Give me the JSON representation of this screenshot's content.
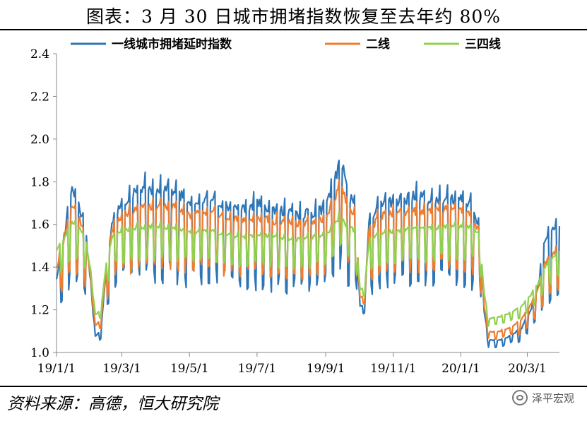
{
  "header": {
    "title": "图表：3 月 30 日城市拥堵指数恢复至去年约 80%"
  },
  "footer": {
    "source": "资料来源：高德，恒大研究院",
    "watermark": "泽平宏观",
    "watermark_icon": "wechat-icon"
  },
  "chart_data": {
    "type": "line",
    "title": "图表：3 月 30 日城市拥堵指数恢复至去年约 80%",
    "xlabel": "",
    "ylabel": "",
    "ylim": [
      1.0,
      2.4
    ],
    "yticks": [
      1.0,
      1.2,
      1.4,
      1.6,
      1.8,
      2.0,
      2.2,
      2.4
    ],
    "x_start": "2019-01-01",
    "x_end": "2020-03-30",
    "xticks": [
      "19/1/1",
      "19/3/1",
      "19/5/1",
      "19/7/1",
      "19/9/1",
      "19/11/1",
      "20/1/1",
      "20/3/1"
    ],
    "grid": false,
    "legend_position": "top",
    "colors": {
      "tier1": "#2E75B6",
      "tier2": "#ED7D31",
      "tier34": "#92D050"
    },
    "series": [
      {
        "name": "一线城市拥堵延时指数",
        "key": "tier1",
        "points": [
          [
            "2019-01-01",
            1.35
          ],
          [
            "2019-01-15",
            1.78
          ],
          [
            "2019-01-22",
            1.7
          ],
          [
            "2019-01-28",
            1.55
          ],
          [
            "2019-02-02",
            1.28
          ],
          [
            "2019-02-05",
            1.08
          ],
          [
            "2019-02-10",
            1.1
          ],
          [
            "2019-02-15",
            1.4
          ],
          [
            "2019-02-20",
            1.62
          ],
          [
            "2019-03-01",
            1.73
          ],
          [
            "2019-03-20",
            1.8
          ],
          [
            "2019-04-01",
            1.79
          ],
          [
            "2019-04-20",
            1.78
          ],
          [
            "2019-05-01",
            1.72
          ],
          [
            "2019-05-20",
            1.76
          ],
          [
            "2019-06-05",
            1.7
          ],
          [
            "2019-06-20",
            1.7
          ],
          [
            "2019-07-01",
            1.72
          ],
          [
            "2019-07-20",
            1.69
          ],
          [
            "2019-08-05",
            1.67
          ],
          [
            "2019-08-20",
            1.68
          ],
          [
            "2019-09-01",
            1.7
          ],
          [
            "2019-09-10",
            1.85
          ],
          [
            "2019-09-15",
            1.95
          ],
          [
            "2019-09-20",
            1.78
          ],
          [
            "2019-09-28",
            1.7
          ],
          [
            "2019-10-02",
            1.22
          ],
          [
            "2019-10-06",
            1.22
          ],
          [
            "2019-10-10",
            1.62
          ],
          [
            "2019-10-20",
            1.72
          ],
          [
            "2019-11-01",
            1.73
          ],
          [
            "2019-11-20",
            1.76
          ],
          [
            "2019-12-05",
            1.74
          ],
          [
            "2019-12-20",
            1.75
          ],
          [
            "2020-01-01",
            1.74
          ],
          [
            "2020-01-10",
            1.72
          ],
          [
            "2020-01-18",
            1.62
          ],
          [
            "2020-01-22",
            1.2
          ],
          [
            "2020-01-26",
            1.06
          ],
          [
            "2020-02-05",
            1.06
          ],
          [
            "2020-02-15",
            1.08
          ],
          [
            "2020-02-25",
            1.12
          ],
          [
            "2020-03-05",
            1.22
          ],
          [
            "2020-03-12",
            1.35
          ],
          [
            "2020-03-16",
            1.55
          ],
          [
            "2020-03-22",
            1.58
          ],
          [
            "2020-03-30",
            1.62
          ]
        ]
      },
      {
        "name": "二线",
        "key": "tier2",
        "points": [
          [
            "2019-01-01",
            1.4
          ],
          [
            "2019-01-15",
            1.7
          ],
          [
            "2019-01-22",
            1.65
          ],
          [
            "2019-01-28",
            1.52
          ],
          [
            "2019-02-02",
            1.3
          ],
          [
            "2019-02-05",
            1.13
          ],
          [
            "2019-02-10",
            1.15
          ],
          [
            "2019-02-15",
            1.4
          ],
          [
            "2019-02-20",
            1.58
          ],
          [
            "2019-03-01",
            1.66
          ],
          [
            "2019-03-20",
            1.7
          ],
          [
            "2019-04-01",
            1.7
          ],
          [
            "2019-04-20",
            1.7
          ],
          [
            "2019-05-01",
            1.66
          ],
          [
            "2019-05-20",
            1.68
          ],
          [
            "2019-06-05",
            1.64
          ],
          [
            "2019-06-20",
            1.64
          ],
          [
            "2019-07-01",
            1.65
          ],
          [
            "2019-07-20",
            1.63
          ],
          [
            "2019-08-05",
            1.62
          ],
          [
            "2019-08-20",
            1.63
          ],
          [
            "2019-09-01",
            1.64
          ],
          [
            "2019-09-10",
            1.75
          ],
          [
            "2019-09-15",
            1.84
          ],
          [
            "2019-09-20",
            1.7
          ],
          [
            "2019-09-28",
            1.66
          ],
          [
            "2019-10-02",
            1.26
          ],
          [
            "2019-10-06",
            1.26
          ],
          [
            "2019-10-10",
            1.58
          ],
          [
            "2019-10-20",
            1.66
          ],
          [
            "2019-11-01",
            1.67
          ],
          [
            "2019-11-20",
            1.68
          ],
          [
            "2019-12-05",
            1.68
          ],
          [
            "2019-12-20",
            1.69
          ],
          [
            "2020-01-01",
            1.68
          ],
          [
            "2020-01-10",
            1.66
          ],
          [
            "2020-01-18",
            1.58
          ],
          [
            "2020-01-22",
            1.22
          ],
          [
            "2020-01-26",
            1.1
          ],
          [
            "2020-02-05",
            1.1
          ],
          [
            "2020-02-15",
            1.12
          ],
          [
            "2020-02-25",
            1.16
          ],
          [
            "2020-03-05",
            1.24
          ],
          [
            "2020-03-12",
            1.32
          ],
          [
            "2020-03-16",
            1.42
          ],
          [
            "2020-03-22",
            1.46
          ],
          [
            "2020-03-30",
            1.5
          ]
        ]
      },
      {
        "name": "三四线",
        "key": "tier34",
        "points": [
          [
            "2019-01-01",
            1.48
          ],
          [
            "2019-01-15",
            1.62
          ],
          [
            "2019-01-22",
            1.6
          ],
          [
            "2019-01-28",
            1.52
          ],
          [
            "2019-02-02",
            1.35
          ],
          [
            "2019-02-05",
            1.18
          ],
          [
            "2019-02-10",
            1.2
          ],
          [
            "2019-02-15",
            1.42
          ],
          [
            "2019-02-20",
            1.55
          ],
          [
            "2019-03-01",
            1.58
          ],
          [
            "2019-03-20",
            1.6
          ],
          [
            "2019-04-01",
            1.6
          ],
          [
            "2019-04-20",
            1.59
          ],
          [
            "2019-05-01",
            1.57
          ],
          [
            "2019-05-20",
            1.58
          ],
          [
            "2019-06-05",
            1.56
          ],
          [
            "2019-06-20",
            1.55
          ],
          [
            "2019-07-01",
            1.56
          ],
          [
            "2019-07-20",
            1.55
          ],
          [
            "2019-08-05",
            1.54
          ],
          [
            "2019-08-20",
            1.55
          ],
          [
            "2019-09-01",
            1.56
          ],
          [
            "2019-09-10",
            1.62
          ],
          [
            "2019-09-15",
            1.66
          ],
          [
            "2019-09-20",
            1.6
          ],
          [
            "2019-09-28",
            1.58
          ],
          [
            "2019-10-02",
            1.3
          ],
          [
            "2019-10-06",
            1.3
          ],
          [
            "2019-10-10",
            1.52
          ],
          [
            "2019-10-20",
            1.57
          ],
          [
            "2019-11-01",
            1.58
          ],
          [
            "2019-11-20",
            1.59
          ],
          [
            "2019-12-05",
            1.59
          ],
          [
            "2019-12-20",
            1.6
          ],
          [
            "2020-01-01",
            1.6
          ],
          [
            "2020-01-10",
            1.6
          ],
          [
            "2020-01-18",
            1.56
          ],
          [
            "2020-01-22",
            1.28
          ],
          [
            "2020-01-26",
            1.16
          ],
          [
            "2020-02-05",
            1.17
          ],
          [
            "2020-02-15",
            1.19
          ],
          [
            "2020-02-25",
            1.22
          ],
          [
            "2020-03-05",
            1.28
          ],
          [
            "2020-03-12",
            1.34
          ],
          [
            "2020-03-16",
            1.4
          ],
          [
            "2020-03-22",
            1.44
          ],
          [
            "2020-03-30",
            1.48
          ]
        ]
      }
    ]
  }
}
